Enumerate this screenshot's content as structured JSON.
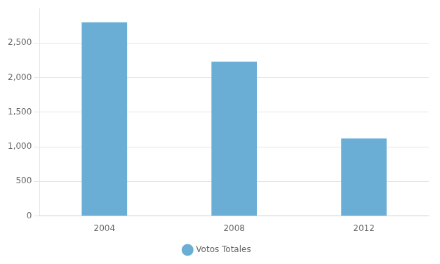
{
  "chart_data": {
    "type": "bar",
    "categories": [
      "2004",
      "2008",
      "2012"
    ],
    "series": [
      {
        "name": "Votos Totales",
        "color": "#6aaed6",
        "values": [
          2800,
          2230,
          1120
        ]
      }
    ],
    "ylim": [
      0,
      3000
    ],
    "yticks": [
      0,
      500,
      1000,
      1500,
      2000,
      2500
    ],
    "grid": true,
    "legend": "bottom"
  }
}
